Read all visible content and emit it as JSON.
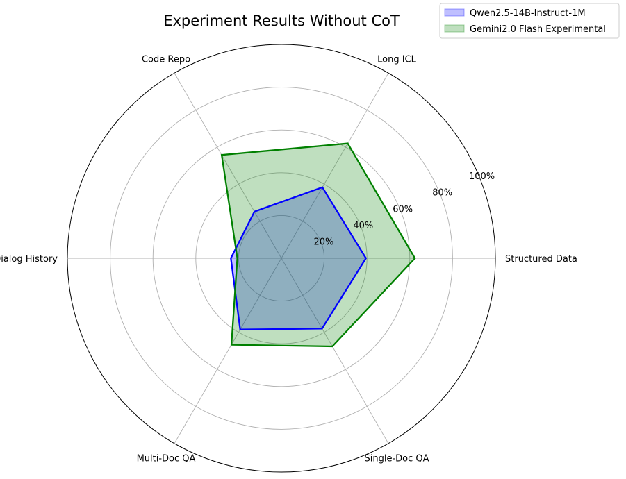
{
  "chart_data": {
    "type": "radar",
    "title": "Experiment Results Without CoT",
    "categories": [
      "Structured Data",
      "Long ICL",
      "Code Repo",
      "Long Dialog History",
      "Multi-Doc QA",
      "Single-Doc QA"
    ],
    "tick_labels": [
      "20%",
      "40%",
      "60%",
      "80%",
      "100%"
    ],
    "rlim": [
      0,
      100
    ],
    "grid": true,
    "legend_position": "top-right",
    "series": [
      {
        "name": "Qwen2.5-14B-Instruct-1M",
        "values": [
          39.5,
          38.3,
          25.2,
          23.6,
          38.5,
          38.0
        ],
        "line_color": "#0000ff",
        "fill_color": "#0000ff",
        "fill_opacity": 0.25
      },
      {
        "name": "Gemini2.0 Flash Experimental",
        "values": [
          62.4,
          62.0,
          55.8,
          20.6,
          46.7,
          47.6
        ],
        "line_color": "#008000",
        "fill_color": "#008000",
        "fill_opacity": 0.25
      }
    ]
  }
}
